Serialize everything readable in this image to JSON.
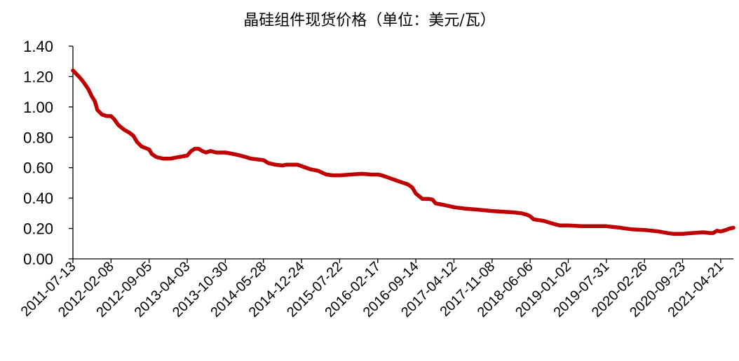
{
  "chart_data": {
    "type": "line",
    "title": "晶硅组件现货价格（单位：美元/瓦）",
    "xlabel": "",
    "ylabel": "",
    "ylim": [
      0,
      1.4
    ],
    "yticks": [
      "0.00",
      "0.20",
      "0.40",
      "0.60",
      "0.80",
      "1.00",
      "1.20",
      "1.40"
    ],
    "xlim": [
      "2011-07-13",
      "2021-06-30"
    ],
    "xticks": [
      "2011-07-13",
      "2012-02-08",
      "2012-09-05",
      "2013-04-03",
      "2013-10-30",
      "2014-05-28",
      "2014-12-24",
      "2015-07-22",
      "2016-02-17",
      "2016-09-14",
      "2017-04-12",
      "2017-11-08",
      "2018-06-06",
      "2019-01-02",
      "2019-07-31",
      "2020-02-26",
      "2020-09-23",
      "2021-04-21"
    ],
    "grid": false,
    "legend": "none",
    "colors": {
      "series": "#c00000",
      "axis": "#000000"
    },
    "series": [
      {
        "name": "",
        "points": [
          [
            "2011-07-13",
            1.24
          ],
          [
            "2011-08-15",
            1.2
          ],
          [
            "2011-09-05",
            1.17
          ],
          [
            "2011-10-05",
            1.12
          ],
          [
            "2011-10-25",
            1.07
          ],
          [
            "2011-11-10",
            1.04
          ],
          [
            "2011-11-25",
            0.98
          ],
          [
            "2011-12-20",
            0.95
          ],
          [
            "2012-01-15",
            0.94
          ],
          [
            "2012-02-08",
            0.94
          ],
          [
            "2012-02-25",
            0.92
          ],
          [
            "2012-03-20",
            0.88
          ],
          [
            "2012-04-20",
            0.85
          ],
          [
            "2012-05-20",
            0.83
          ],
          [
            "2012-06-10",
            0.81
          ],
          [
            "2012-06-30",
            0.77
          ],
          [
            "2012-07-25",
            0.74
          ],
          [
            "2012-09-05",
            0.72
          ],
          [
            "2012-09-20",
            0.69
          ],
          [
            "2012-10-15",
            0.67
          ],
          [
            "2012-11-20",
            0.66
          ],
          [
            "2013-01-01",
            0.66
          ],
          [
            "2013-02-15",
            0.67
          ],
          [
            "2013-04-03",
            0.68
          ],
          [
            "2013-04-25",
            0.71
          ],
          [
            "2013-05-15",
            0.725
          ],
          [
            "2013-06-05",
            0.725
          ],
          [
            "2013-06-25",
            0.71
          ],
          [
            "2013-07-15",
            0.7
          ],
          [
            "2013-08-10",
            0.71
          ],
          [
            "2013-09-10",
            0.7
          ],
          [
            "2013-10-30",
            0.7
          ],
          [
            "2013-12-15",
            0.69
          ],
          [
            "2014-01-20",
            0.68
          ],
          [
            "2014-02-20",
            0.67
          ],
          [
            "2014-03-20",
            0.66
          ],
          [
            "2014-05-28",
            0.65
          ],
          [
            "2014-06-25",
            0.63
          ],
          [
            "2014-08-01",
            0.62
          ],
          [
            "2014-09-10",
            0.615
          ],
          [
            "2014-10-01",
            0.62
          ],
          [
            "2014-12-01",
            0.62
          ],
          [
            "2014-12-24",
            0.61
          ],
          [
            "2015-02-10",
            0.59
          ],
          [
            "2015-03-25",
            0.58
          ],
          [
            "2015-05-10",
            0.555
          ],
          [
            "2015-06-15",
            0.55
          ],
          [
            "2015-07-22",
            0.55
          ],
          [
            "2015-09-20",
            0.555
          ],
          [
            "2015-11-20",
            0.56
          ],
          [
            "2016-01-15",
            0.555
          ],
          [
            "2016-02-17",
            0.555
          ],
          [
            "2016-03-10",
            0.55
          ],
          [
            "2016-04-15",
            0.535
          ],
          [
            "2016-05-20",
            0.52
          ],
          [
            "2016-06-25",
            0.505
          ],
          [
            "2016-08-01",
            0.49
          ],
          [
            "2016-08-25",
            0.47
          ],
          [
            "2016-09-14",
            0.43
          ],
          [
            "2016-10-05",
            0.41
          ],
          [
            "2016-10-20",
            0.395
          ],
          [
            "2016-11-20",
            0.395
          ],
          [
            "2016-12-15",
            0.39
          ],
          [
            "2017-01-01",
            0.365
          ],
          [
            "2017-02-15",
            0.355
          ],
          [
            "2017-04-12",
            0.34
          ],
          [
            "2017-06-15",
            0.33
          ],
          [
            "2017-08-10",
            0.325
          ],
          [
            "2017-11-08",
            0.315
          ],
          [
            "2018-01-15",
            0.31
          ],
          [
            "2018-03-15",
            0.305
          ],
          [
            "2018-04-20",
            0.3
          ],
          [
            "2018-05-20",
            0.29
          ],
          [
            "2018-06-06",
            0.28
          ],
          [
            "2018-06-25",
            0.26
          ],
          [
            "2018-08-20",
            0.25
          ],
          [
            "2018-10-15",
            0.23
          ],
          [
            "2018-11-15",
            0.22
          ],
          [
            "2019-01-02",
            0.22
          ],
          [
            "2019-03-15",
            0.215
          ],
          [
            "2019-05-15",
            0.215
          ],
          [
            "2019-07-31",
            0.215
          ],
          [
            "2019-10-15",
            0.205
          ],
          [
            "2019-12-15",
            0.195
          ],
          [
            "2020-02-26",
            0.19
          ],
          [
            "2020-05-15",
            0.18
          ],
          [
            "2020-07-01",
            0.17
          ],
          [
            "2020-08-01",
            0.165
          ],
          [
            "2020-09-23",
            0.165
          ],
          [
            "2020-11-15",
            0.17
          ],
          [
            "2021-01-15",
            0.175
          ],
          [
            "2021-02-20",
            0.17
          ],
          [
            "2021-03-10",
            0.17
          ],
          [
            "2021-04-01",
            0.185
          ],
          [
            "2021-04-21",
            0.18
          ],
          [
            "2021-05-20",
            0.19
          ],
          [
            "2021-06-10",
            0.2
          ],
          [
            "2021-06-30",
            0.205
          ]
        ]
      }
    ]
  }
}
